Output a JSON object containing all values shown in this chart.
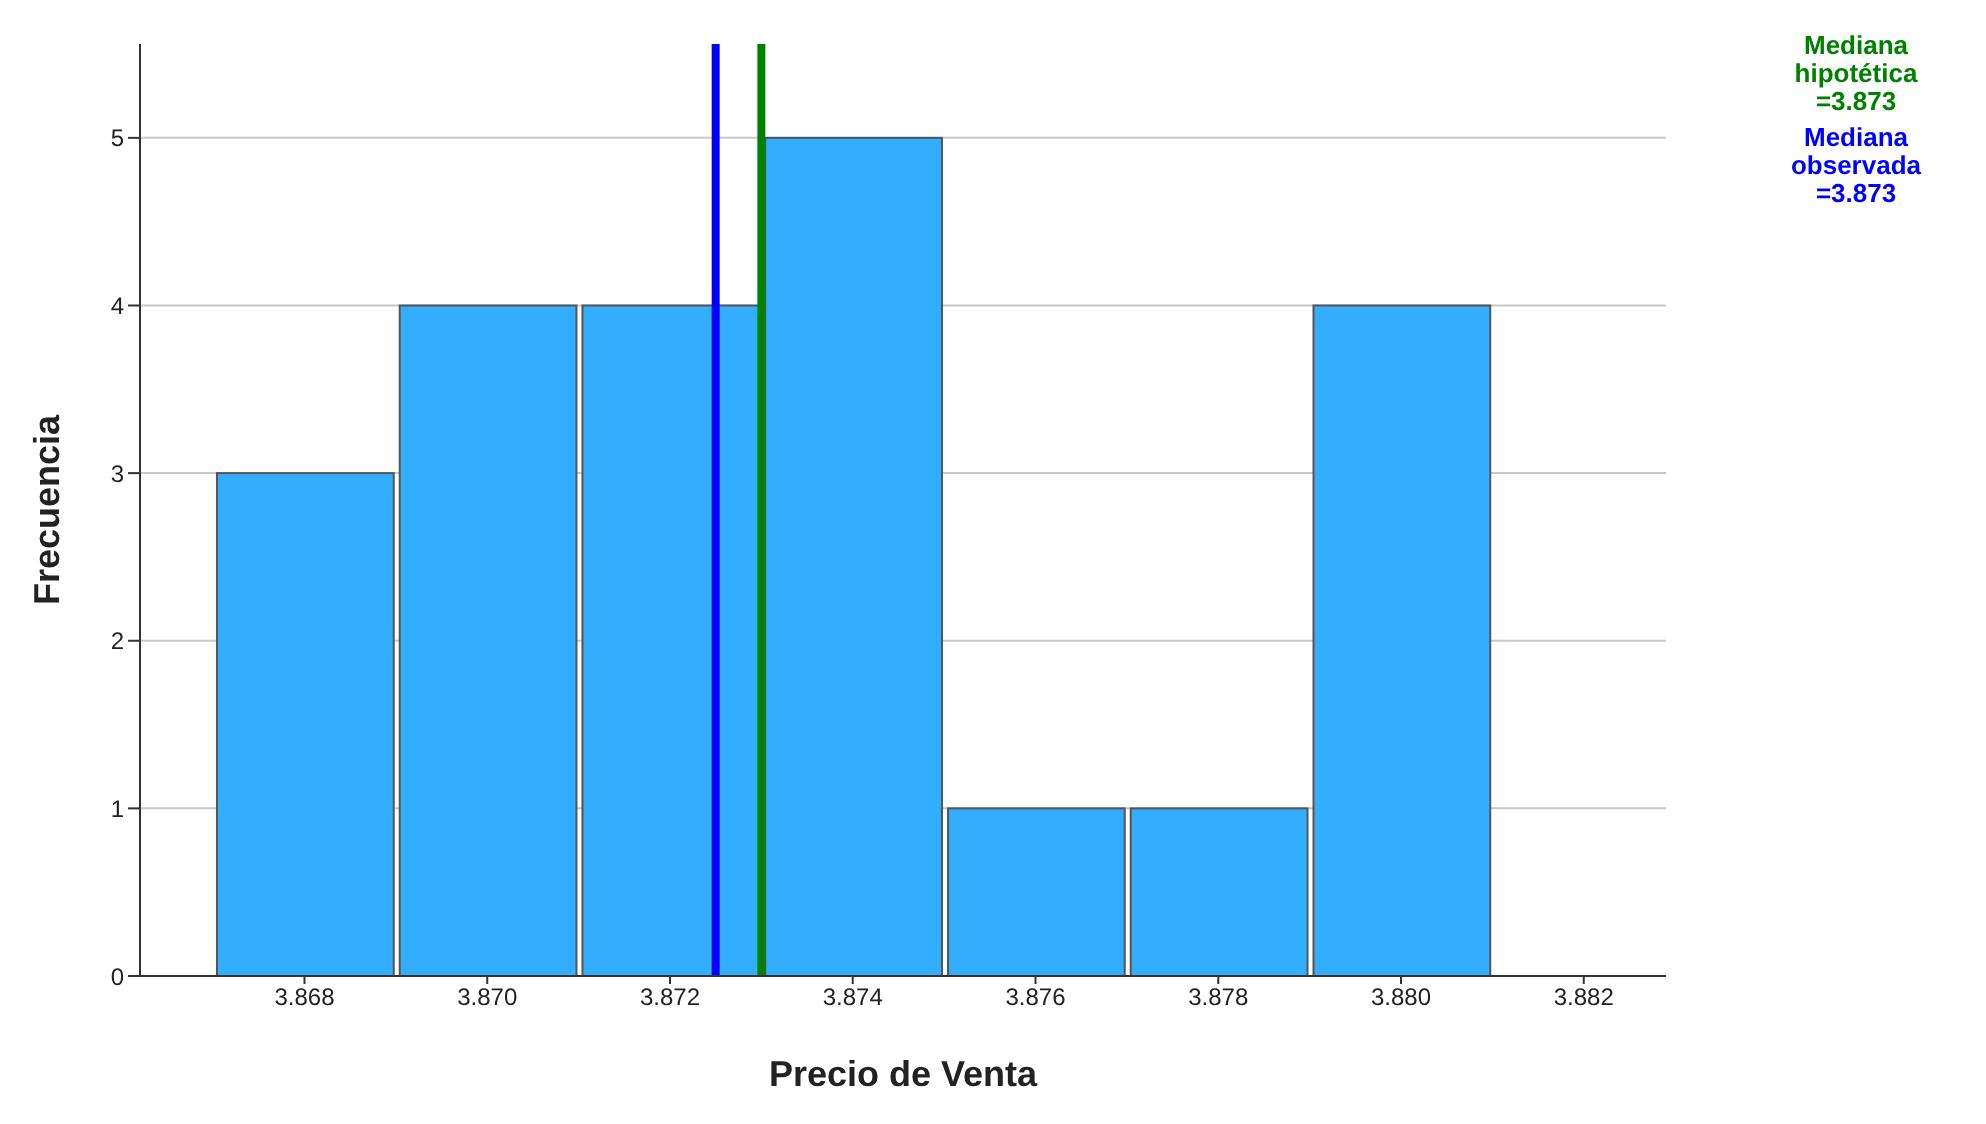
{
  "chart_data": {
    "type": "histogram",
    "xlabel": "Precio de Venta",
    "ylabel": "Frecuencia",
    "bins": [
      3.867,
      3.869,
      3.871,
      3.873,
      3.875,
      3.877,
      3.879,
      3.881
    ],
    "values": [
      3,
      4,
      4,
      5,
      1,
      1,
      4
    ],
    "color": "#33adff",
    "xlim": [
      3.8662,
      3.8829
    ],
    "xticks": [
      {
        "value": 3.868,
        "label": "3.868"
      },
      {
        "value": 3.87,
        "label": "3.870"
      },
      {
        "value": 3.872,
        "label": "3.872"
      },
      {
        "value": 3.874,
        "label": "3.874"
      },
      {
        "value": 3.876,
        "label": "3.876"
      },
      {
        "value": 3.878,
        "label": "3.878"
      },
      {
        "value": 3.88,
        "label": "3.880"
      },
      {
        "value": 3.882,
        "label": "3.882"
      }
    ],
    "ylim": [
      0,
      5.56
    ],
    "yticks": [
      0,
      1,
      2,
      3,
      4,
      5
    ],
    "grid": "y",
    "ref_lines": [
      {
        "axis": "x",
        "value": 3.8725,
        "label": "Mediana observada =3.873",
        "color": "#0000ff"
      },
      {
        "axis": "x",
        "value": 3.873,
        "label": "Mediana hipotética =3.873",
        "color": "#008000"
      }
    ]
  }
}
